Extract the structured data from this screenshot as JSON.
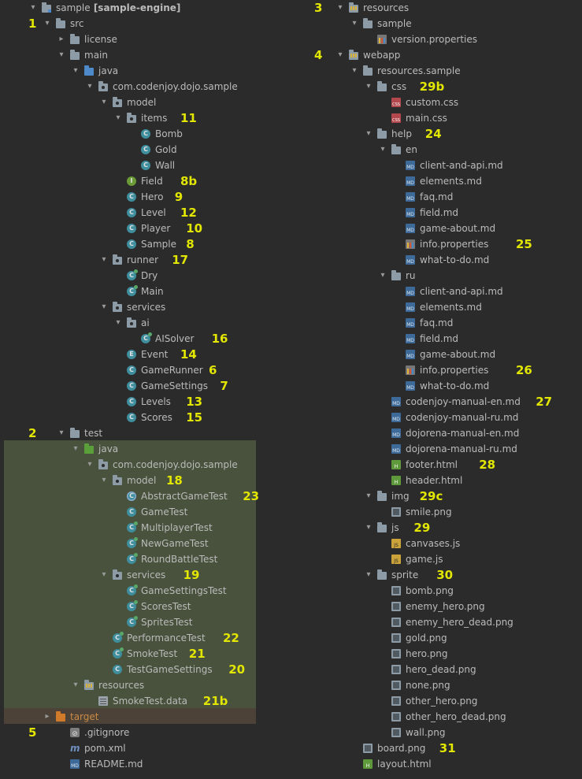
{
  "left": [
    {
      "t": "sample",
      "suf": "[sample-engine]",
      "d": 0,
      "i": "module",
      "e": "open",
      "n": "",
      "k": "root"
    },
    {
      "t": "src",
      "d": 1,
      "i": "folder",
      "e": "open",
      "n": "1"
    },
    {
      "t": "license",
      "d": 2,
      "i": "folder",
      "e": "closed",
      "n": ""
    },
    {
      "t": "main",
      "d": 2,
      "i": "folder",
      "e": "open",
      "n": ""
    },
    {
      "t": "java",
      "d": 3,
      "i": "folder-src",
      "e": "open",
      "n": ""
    },
    {
      "t": "com.codenjoy.dojo.sample",
      "d": 4,
      "i": "package",
      "e": "open",
      "n": ""
    },
    {
      "t": "model",
      "d": 5,
      "i": "package",
      "e": "open",
      "n": ""
    },
    {
      "t": "items",
      "d": 6,
      "i": "package",
      "e": "open",
      "n": "11"
    },
    {
      "t": "Bomb",
      "d": 7,
      "i": "class",
      "e": "none",
      "n": ""
    },
    {
      "t": "Gold",
      "d": 7,
      "i": "class",
      "e": "none",
      "n": ""
    },
    {
      "t": "Wall",
      "d": 7,
      "i": "class",
      "e": "none",
      "n": ""
    },
    {
      "t": "Field",
      "d": 6,
      "i": "interface",
      "e": "none",
      "n": "8b"
    },
    {
      "t": "Hero",
      "d": 6,
      "i": "class",
      "e": "none",
      "n": "9"
    },
    {
      "t": "Level",
      "d": 6,
      "i": "class",
      "e": "none",
      "n": "12"
    },
    {
      "t": "Player",
      "d": 6,
      "i": "class",
      "e": "none",
      "n": "10"
    },
    {
      "t": "Sample",
      "d": 6,
      "i": "class",
      "e": "none",
      "n": "8"
    },
    {
      "t": "runner",
      "d": 5,
      "i": "package",
      "e": "open",
      "n": "17"
    },
    {
      "t": "Dry",
      "d": 6,
      "i": "runclass",
      "e": "none",
      "n": ""
    },
    {
      "t": "Main",
      "d": 6,
      "i": "runclass",
      "e": "none",
      "n": ""
    },
    {
      "t": "services",
      "d": 5,
      "i": "package",
      "e": "open",
      "n": ""
    },
    {
      "t": "ai",
      "d": 6,
      "i": "package",
      "e": "open",
      "n": ""
    },
    {
      "t": "AISolver",
      "d": 7,
      "i": "runclass",
      "e": "none",
      "n": "16"
    },
    {
      "t": "Event",
      "d": 6,
      "i": "enum",
      "e": "none",
      "n": "14"
    },
    {
      "t": "GameRunner",
      "d": 6,
      "i": "class",
      "e": "none",
      "n": "6"
    },
    {
      "t": "GameSettings",
      "d": 6,
      "i": "class",
      "e": "none",
      "n": "7"
    },
    {
      "t": "Levels",
      "d": 6,
      "i": "class",
      "e": "none",
      "n": "13"
    },
    {
      "t": "Scores",
      "d": 6,
      "i": "class",
      "e": "none",
      "n": "15"
    },
    {
      "t": "test",
      "d": 2,
      "i": "folder",
      "e": "open",
      "n": "2",
      "k": "testroot"
    },
    {
      "t": "java",
      "d": 3,
      "i": "folder-test",
      "e": "open",
      "n": ""
    },
    {
      "t": "com.codenjoy.dojo.sample",
      "d": 4,
      "i": "package",
      "e": "open",
      "n": ""
    },
    {
      "t": "model",
      "d": 5,
      "i": "package",
      "e": "open",
      "n": "18"
    },
    {
      "t": "AbstractGameTest",
      "d": 6,
      "i": "abstract",
      "e": "none",
      "n": "23"
    },
    {
      "t": "GameTest",
      "d": 6,
      "i": "class",
      "e": "none",
      "n": ""
    },
    {
      "t": "MultiplayerTest",
      "d": 6,
      "i": "runclass",
      "e": "none",
      "n": ""
    },
    {
      "t": "NewGameTest",
      "d": 6,
      "i": "runclass",
      "e": "none",
      "n": ""
    },
    {
      "t": "RoundBattleTest",
      "d": 6,
      "i": "runclass",
      "e": "none",
      "n": ""
    },
    {
      "t": "services",
      "d": 5,
      "i": "package",
      "e": "open",
      "n": "19"
    },
    {
      "t": "GameSettingsTest",
      "d": 6,
      "i": "runclass",
      "e": "none",
      "n": ""
    },
    {
      "t": "ScoresTest",
      "d": 6,
      "i": "runclass",
      "e": "none",
      "n": ""
    },
    {
      "t": "SpritesTest",
      "d": 6,
      "i": "runclass",
      "e": "none",
      "n": ""
    },
    {
      "t": "PerformanceTest",
      "d": 5,
      "i": "runclass",
      "e": "none",
      "n": "22"
    },
    {
      "t": "SmokeTest",
      "d": 5,
      "i": "runclass",
      "e": "none",
      "n": "21"
    },
    {
      "t": "TestGameSettings",
      "d": 5,
      "i": "class",
      "e": "none",
      "n": "20"
    },
    {
      "t": "resources",
      "d": 3,
      "i": "folder-res",
      "e": "open",
      "n": ""
    },
    {
      "t": "SmokeTest.data",
      "d": 4,
      "i": "data",
      "e": "none",
      "n": "21b"
    },
    {
      "t": "target",
      "d": 1,
      "i": "folder-target",
      "e": "closed",
      "n": "",
      "k": "target"
    },
    {
      "t": ".gitignore",
      "d": 2,
      "i": "gitignore",
      "e": "none",
      "n": "5"
    },
    {
      "t": "pom.xml",
      "d": 2,
      "i": "pom",
      "e": "none",
      "n": ""
    },
    {
      "t": "README.md",
      "d": 2,
      "i": "md",
      "e": "none",
      "n": ""
    }
  ],
  "right": [
    {
      "t": "resources",
      "d": 0,
      "i": "folder-res",
      "e": "open",
      "n": "3"
    },
    {
      "t": "sample",
      "d": 1,
      "i": "folder",
      "e": "open",
      "n": ""
    },
    {
      "t": "version.properties",
      "d": 2,
      "i": "properties",
      "e": "none",
      "n": ""
    },
    {
      "t": "webapp",
      "d": 0,
      "i": "folder-res",
      "e": "open",
      "n": "4"
    },
    {
      "t": "resources.sample",
      "d": 1,
      "i": "folder",
      "e": "open",
      "n": ""
    },
    {
      "t": "css",
      "d": 2,
      "i": "folder",
      "e": "open",
      "n": "29b"
    },
    {
      "t": "custom.css",
      "d": 3,
      "i": "css",
      "e": "none",
      "n": ""
    },
    {
      "t": "main.css",
      "d": 3,
      "i": "css",
      "e": "none",
      "n": ""
    },
    {
      "t": "help",
      "d": 2,
      "i": "folder",
      "e": "open",
      "n": "24"
    },
    {
      "t": "en",
      "d": 3,
      "i": "folder",
      "e": "open",
      "n": ""
    },
    {
      "t": "client-and-api.md",
      "d": 4,
      "i": "md",
      "e": "none",
      "n": ""
    },
    {
      "t": "elements.md",
      "d": 4,
      "i": "md",
      "e": "none",
      "n": ""
    },
    {
      "t": "faq.md",
      "d": 4,
      "i": "md",
      "e": "none",
      "n": ""
    },
    {
      "t": "field.md",
      "d": 4,
      "i": "md",
      "e": "none",
      "n": ""
    },
    {
      "t": "game-about.md",
      "d": 4,
      "i": "md",
      "e": "none",
      "n": ""
    },
    {
      "t": "info.properties",
      "d": 4,
      "i": "properties",
      "e": "none",
      "n": "25"
    },
    {
      "t": "what-to-do.md",
      "d": 4,
      "i": "md",
      "e": "none",
      "n": ""
    },
    {
      "t": "ru",
      "d": 3,
      "i": "folder",
      "e": "open",
      "n": ""
    },
    {
      "t": "client-and-api.md",
      "d": 4,
      "i": "md",
      "e": "none",
      "n": ""
    },
    {
      "t": "elements.md",
      "d": 4,
      "i": "md",
      "e": "none",
      "n": ""
    },
    {
      "t": "faq.md",
      "d": 4,
      "i": "md",
      "e": "none",
      "n": ""
    },
    {
      "t": "field.md",
      "d": 4,
      "i": "md",
      "e": "none",
      "n": ""
    },
    {
      "t": "game-about.md",
      "d": 4,
      "i": "md",
      "e": "none",
      "n": ""
    },
    {
      "t": "info.properties",
      "d": 4,
      "i": "properties",
      "e": "none",
      "n": "26"
    },
    {
      "t": "what-to-do.md",
      "d": 4,
      "i": "md",
      "e": "none",
      "n": ""
    },
    {
      "t": "codenjoy-manual-en.md",
      "d": 3,
      "i": "md",
      "e": "none",
      "n": "27"
    },
    {
      "t": "codenjoy-manual-ru.md",
      "d": 3,
      "i": "md",
      "e": "none",
      "n": ""
    },
    {
      "t": "dojorena-manual-en.md",
      "d": 3,
      "i": "md",
      "e": "none",
      "n": ""
    },
    {
      "t": "dojorena-manual-ru.md",
      "d": 3,
      "i": "md",
      "e": "none",
      "n": ""
    },
    {
      "t": "footer.html",
      "d": 3,
      "i": "html",
      "e": "none",
      "n": "28"
    },
    {
      "t": "header.html",
      "d": 3,
      "i": "html",
      "e": "none",
      "n": ""
    },
    {
      "t": "img",
      "d": 2,
      "i": "folder",
      "e": "open",
      "n": "29c"
    },
    {
      "t": "smile.png",
      "d": 3,
      "i": "image",
      "e": "none",
      "n": ""
    },
    {
      "t": "js",
      "d": 2,
      "i": "folder",
      "e": "open",
      "n": "29"
    },
    {
      "t": "canvases.js",
      "d": 3,
      "i": "js",
      "e": "none",
      "n": ""
    },
    {
      "t": "game.js",
      "d": 3,
      "i": "js",
      "e": "none",
      "n": ""
    },
    {
      "t": "sprite",
      "d": 2,
      "i": "folder",
      "e": "open",
      "n": "30"
    },
    {
      "t": "bomb.png",
      "d": 3,
      "i": "image",
      "e": "none",
      "n": ""
    },
    {
      "t": "enemy_hero.png",
      "d": 3,
      "i": "image",
      "e": "none",
      "n": ""
    },
    {
      "t": "enemy_hero_dead.png",
      "d": 3,
      "i": "image",
      "e": "none",
      "n": ""
    },
    {
      "t": "gold.png",
      "d": 3,
      "i": "image",
      "e": "none",
      "n": ""
    },
    {
      "t": "hero.png",
      "d": 3,
      "i": "image",
      "e": "none",
      "n": ""
    },
    {
      "t": "hero_dead.png",
      "d": 3,
      "i": "image",
      "e": "none",
      "n": ""
    },
    {
      "t": "none.png",
      "d": 3,
      "i": "image",
      "e": "none",
      "n": ""
    },
    {
      "t": "other_hero.png",
      "d": 3,
      "i": "image",
      "e": "none",
      "n": ""
    },
    {
      "t": "other_hero_dead.png",
      "d": 3,
      "i": "image",
      "e": "none",
      "n": ""
    },
    {
      "t": "wall.png",
      "d": 3,
      "i": "image",
      "e": "none",
      "n": ""
    },
    {
      "t": "board.png",
      "d": 1,
      "i": "image",
      "e": "none",
      "n": "31"
    },
    {
      "t": "layout.html",
      "d": 1,
      "i": "html",
      "e": "none",
      "n": ""
    }
  ],
  "colors": {
    "background": "#2b2b2b",
    "test_highlight": "#48523c",
    "target_highlight": "#4d4237",
    "annotation": "#e2e600",
    "text": "#bbbbbb"
  }
}
